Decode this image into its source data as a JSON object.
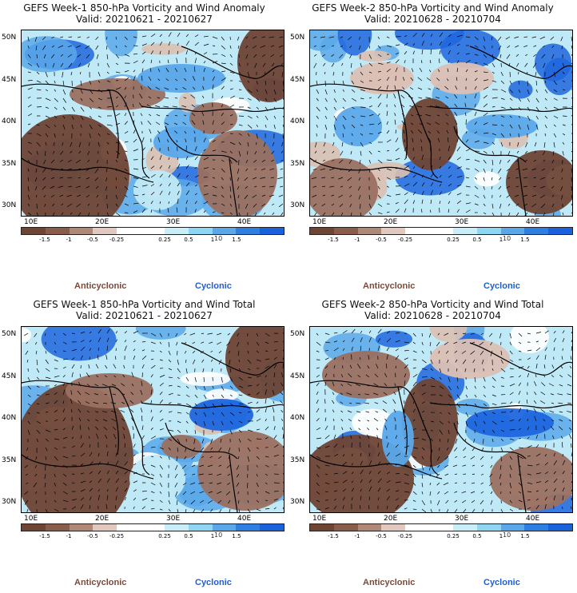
{
  "panels": [
    {
      "title_line1": "GEFS Week-1 850-hPa Vorticity and Wind Anomaly",
      "title_line2": "Valid: 20210621 - 20210627",
      "variant": 1
    },
    {
      "title_line1": "GEFS Week-2 850-hPa Vorticity and Wind Anomaly",
      "title_line2": "Valid: 20210628 - 20210704",
      "variant": 2
    },
    {
      "title_line1": "GEFS Week-1 850-hPa Vorticity and Wind Total",
      "title_line2": "Valid: 20210621 - 20210627",
      "variant": 3
    },
    {
      "title_line1": "GEFS Week-2 850-hPa Vorticity and Wind Total",
      "title_line2": "Valid: 20210628 - 20210704",
      "variant": 4
    }
  ],
  "lat_labels": [
    "50N",
    "45N",
    "40N",
    "35N",
    "30N"
  ],
  "lon_labels": [
    "10E",
    "20E",
    "30E",
    "40E"
  ],
  "colorbar": {
    "colors": [
      "#6e4535",
      "#8a5d4a",
      "#b08878",
      "#e2c9c0",
      "#ffffff",
      "#ffffff",
      "#c8eef8",
      "#8fd6f2",
      "#5aa8ea",
      "#2f7fe3",
      "#1a62dc"
    ],
    "labels": [
      "-1.5",
      "-1",
      "-0.5",
      "-0.25",
      "0.25",
      "0.5",
      "1",
      "1.5"
    ],
    "exponent": "10"
  },
  "legend": {
    "anticyclonic": "Anticyclonic",
    "cyclonic": "Cyclonic"
  },
  "colors": {
    "brown_dark": "#6e4535",
    "brown_mid": "#9a7060",
    "brown_light": "#dcc0b4",
    "blue_light": "#bfe9f6",
    "blue_mid": "#5aa8ea",
    "blue_dark": "#1f66de"
  }
}
